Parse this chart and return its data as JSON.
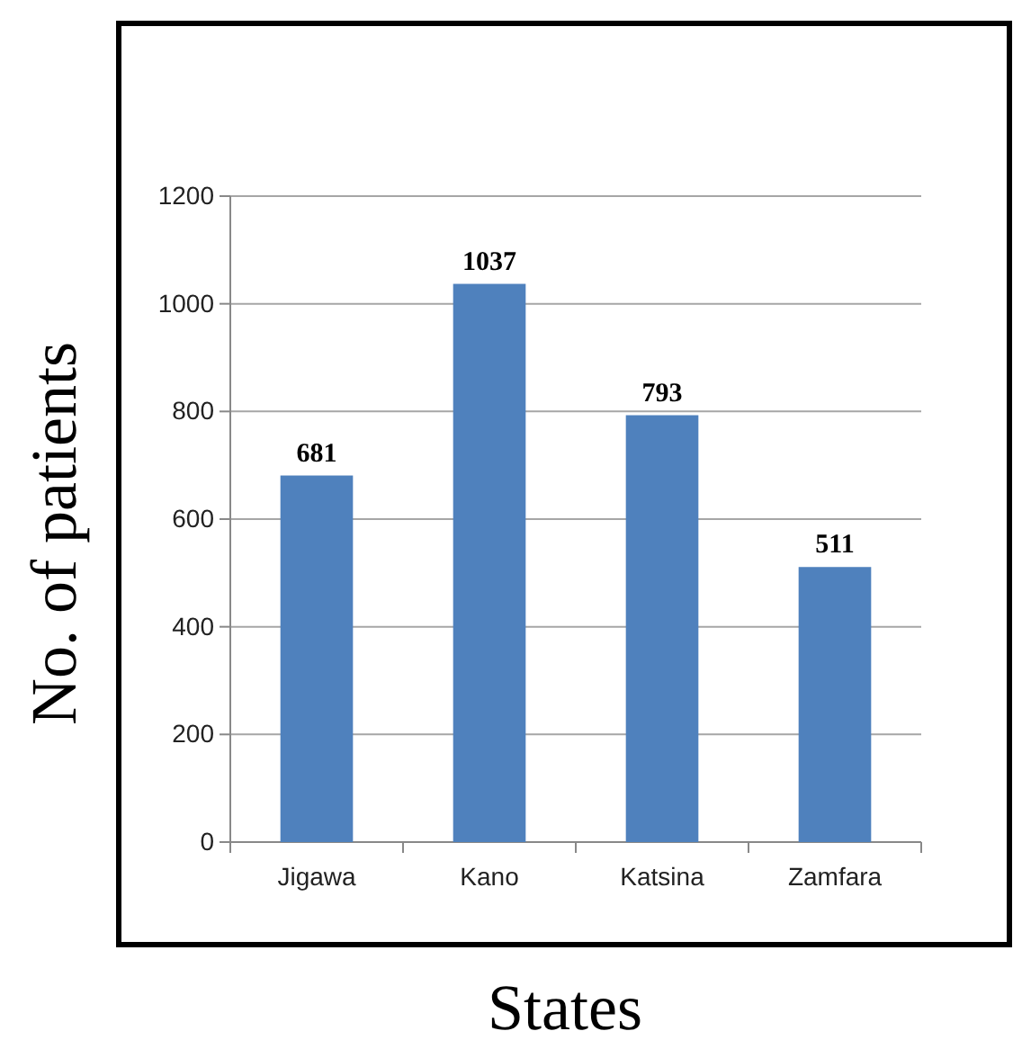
{
  "chart_data": {
    "type": "bar",
    "xlabel": "States",
    "ylabel": "No. of patients",
    "categories": [
      "Jigawa",
      "Kano",
      "Katsina",
      "Zamfara"
    ],
    "values": [
      681,
      1037,
      793,
      511
    ],
    "color": "#4f81bd",
    "ylim": [
      0,
      1200
    ],
    "yticks": [
      0,
      200,
      400,
      600,
      800,
      1000,
      1200
    ],
    "grid": "y",
    "data_labels": true
  }
}
